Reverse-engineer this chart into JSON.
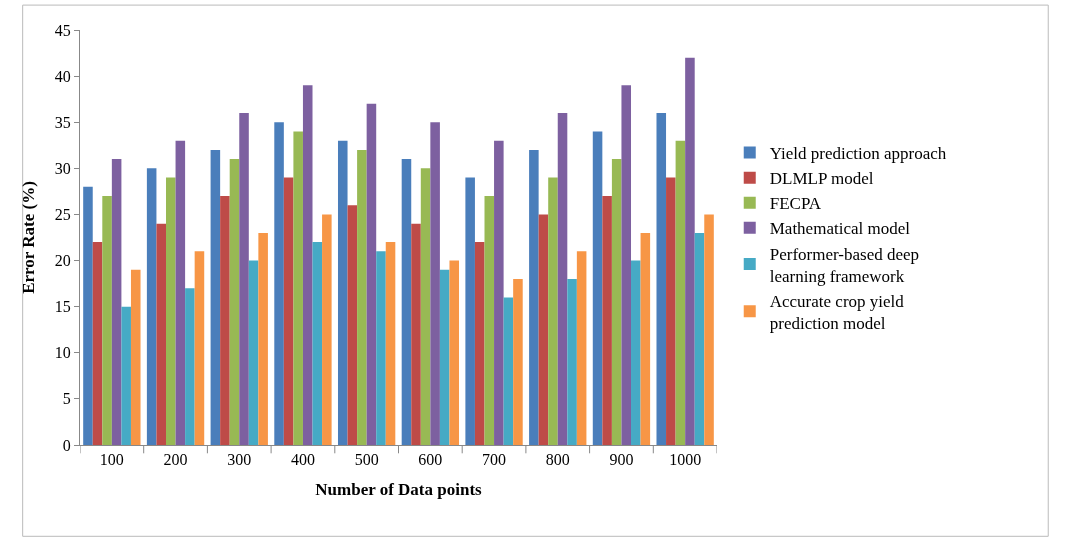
{
  "chart_data": {
    "type": "bar",
    "xlabel": "Number of Data points",
    "ylabel": "Error Rate (%)",
    "categories": [
      "100",
      "200",
      "300",
      "400",
      "500",
      "600",
      "700",
      "800",
      "900",
      "1000"
    ],
    "series": [
      {
        "name": "Yield prediction approach",
        "color": "#4a7ebb",
        "values": [
          28,
          30,
          32,
          35,
          33,
          31,
          29,
          32,
          34,
          36
        ]
      },
      {
        "name": "DLMLP model",
        "color": "#be4b48",
        "values": [
          22,
          24,
          27,
          29,
          26,
          24,
          22,
          25,
          27,
          29
        ]
      },
      {
        "name": "FECPA",
        "color": "#98b954",
        "values": [
          27,
          29,
          31,
          34,
          32,
          30,
          27,
          29,
          31,
          33
        ]
      },
      {
        "name": "Mathematical model",
        "color": "#7d60a0",
        "values": [
          31,
          33,
          36,
          39,
          37,
          35,
          33,
          36,
          39,
          42
        ]
      },
      {
        "name": "Performer-based deep learning framework",
        "color": "#46aac5",
        "values": [
          15,
          17,
          20,
          22,
          21,
          19,
          16,
          18,
          20,
          23
        ]
      },
      {
        "name": "Accurate crop yield prediction model",
        "color": "#f79646",
        "values": [
          19,
          21,
          23,
          25,
          22,
          20,
          18,
          21,
          23,
          25
        ]
      }
    ],
    "ylim": [
      0,
      45
    ],
    "yticks": [
      0,
      5,
      10,
      15,
      20,
      25,
      30,
      35,
      40,
      45
    ],
    "legend": "right"
  }
}
